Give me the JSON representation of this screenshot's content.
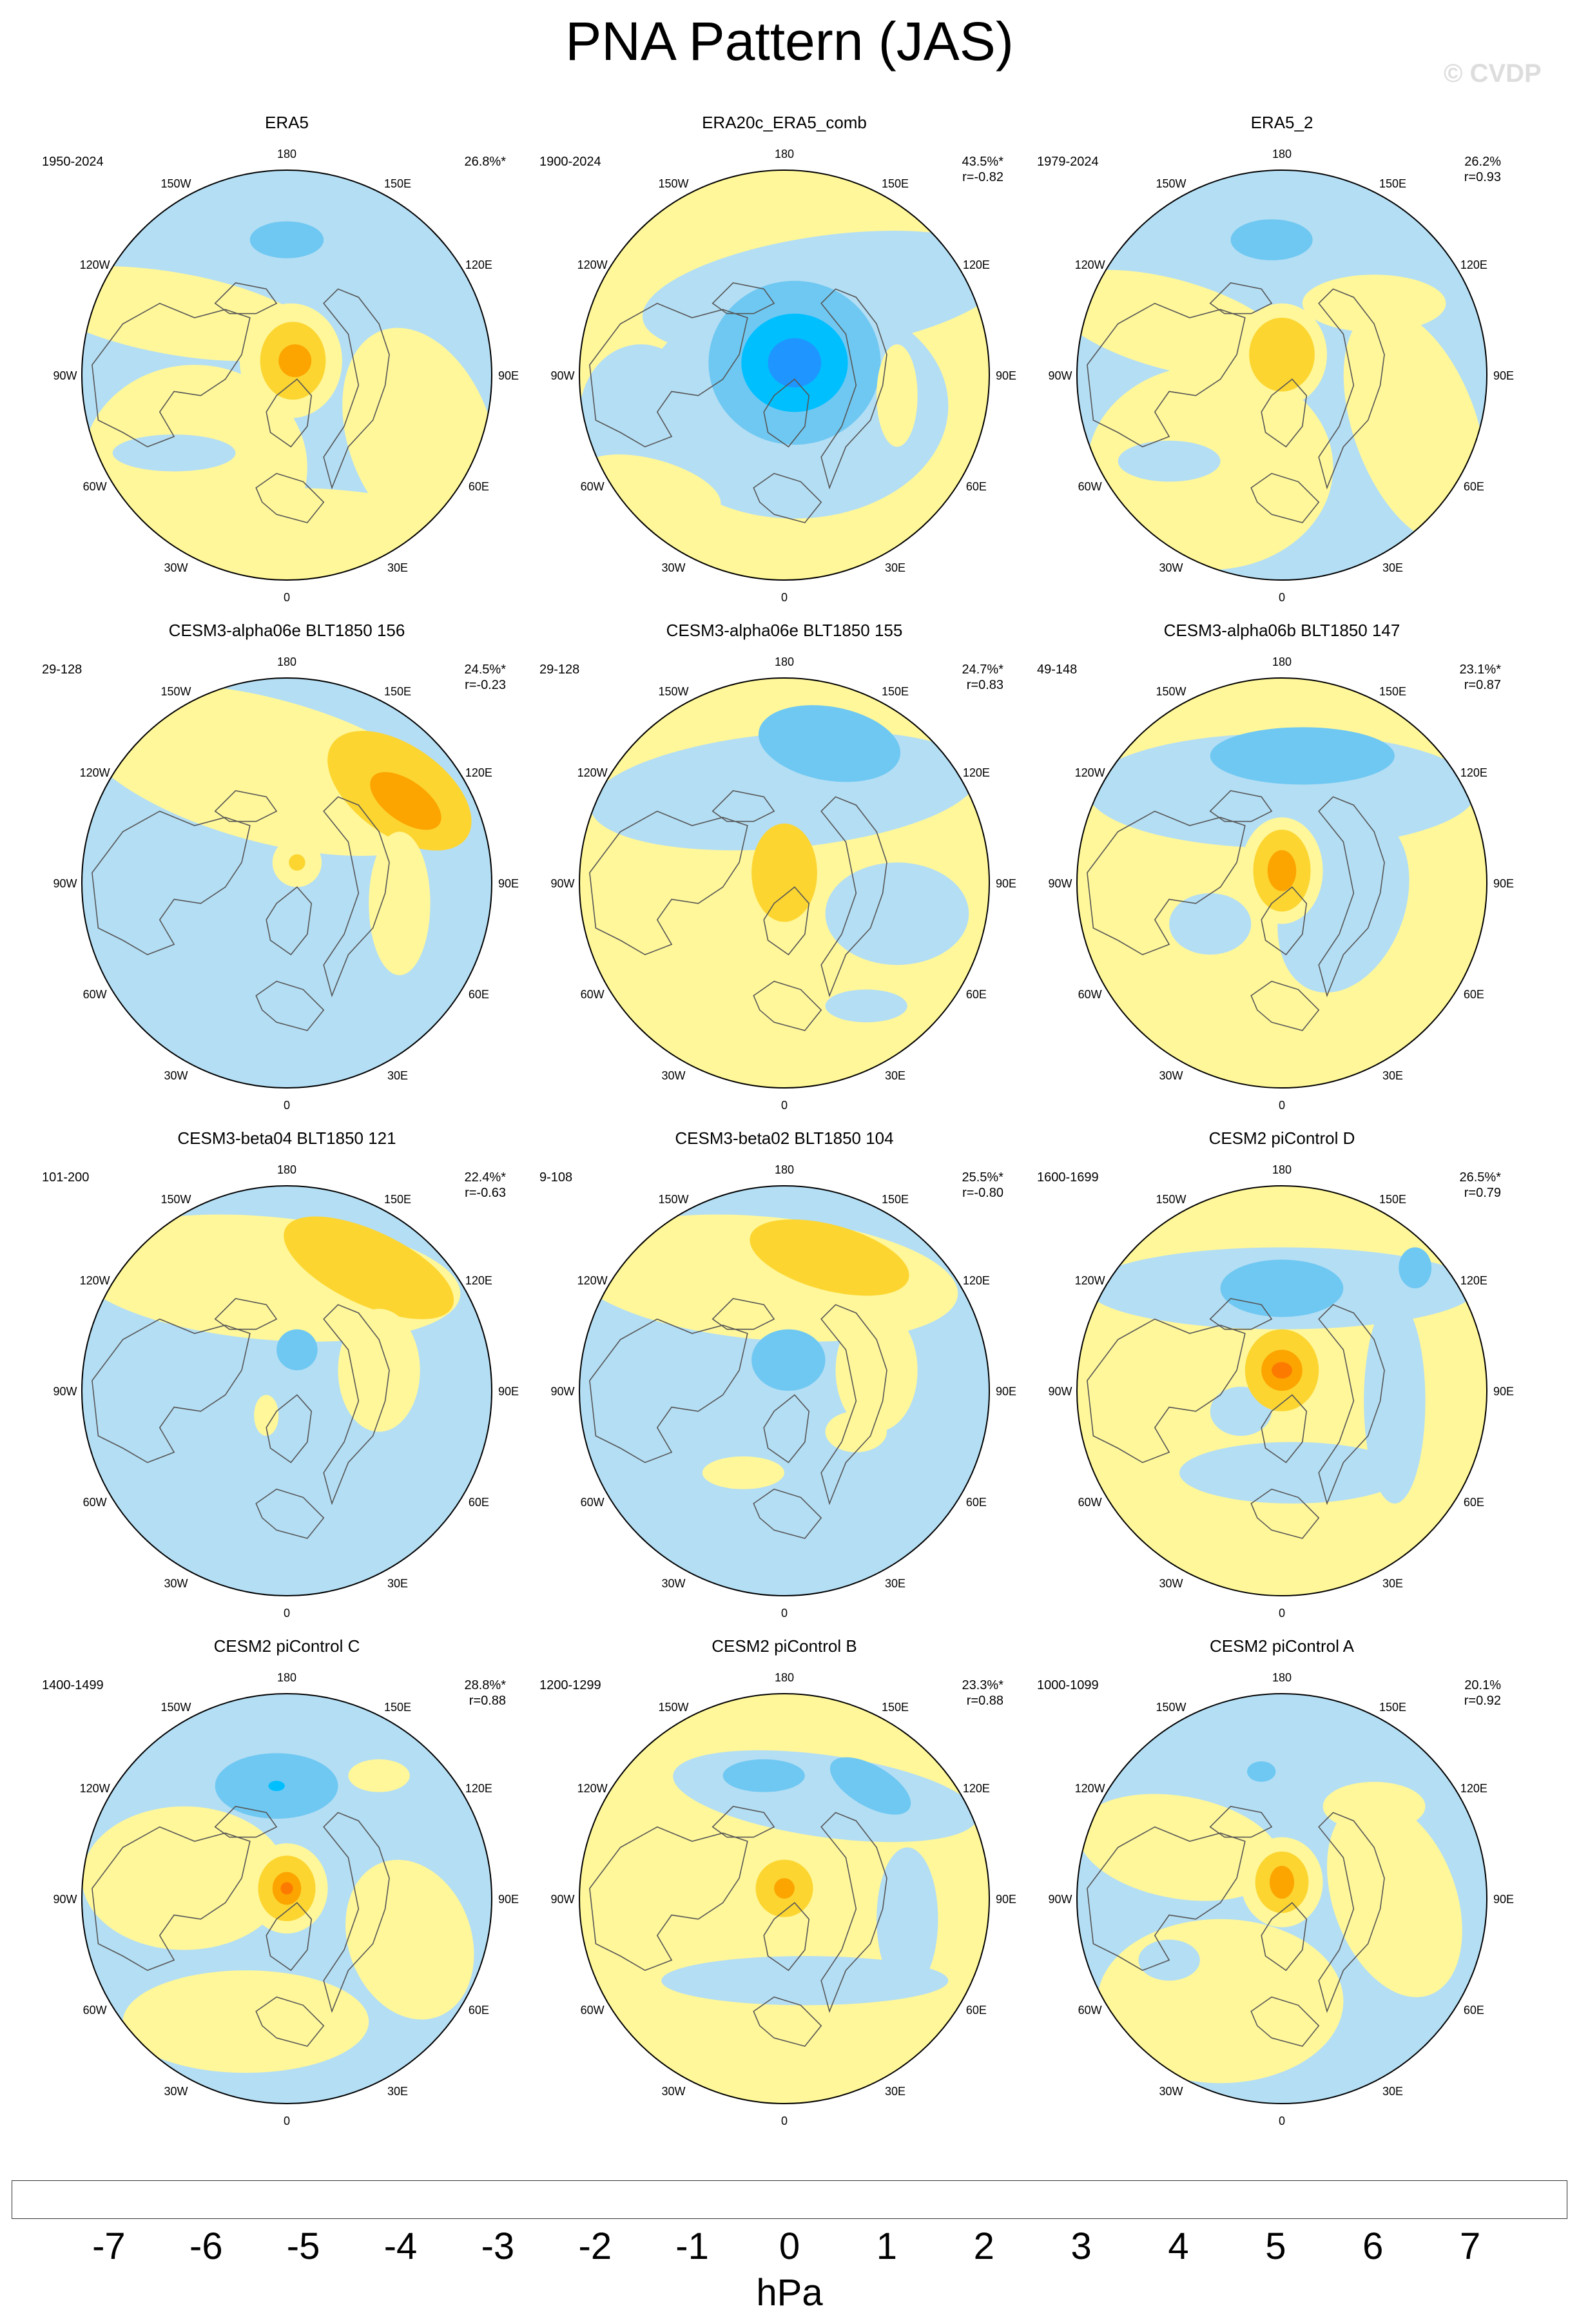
{
  "figure": {
    "title": "PNA Pattern (JAS)",
    "watermark": "© CVDP",
    "units": "hPa",
    "longitude_labels": [
      "180",
      "150E",
      "120E",
      "90E",
      "60E",
      "30E",
      "0",
      "30W",
      "60W",
      "90W",
      "120W",
      "150W"
    ]
  },
  "panels": [
    {
      "name": "ERA5",
      "period": "1950-2024",
      "variance": "26.8%*",
      "corr": "",
      "pattern": "era5"
    },
    {
      "name": "ERA20c_ERA5_comb",
      "period": "1900-2024",
      "variance": "43.5%*",
      "corr": "r=-0.82",
      "pattern": "era20c"
    },
    {
      "name": "ERA5_2",
      "period": "1979-2024",
      "variance": "26.2%",
      "corr": "r=0.93",
      "pattern": "era5_2"
    },
    {
      "name": "CESM3-alpha06e BLT1850 156",
      "period": "29-128",
      "variance": "24.5%*",
      "corr": "r=-0.23",
      "pattern": "a156"
    },
    {
      "name": "CESM3-alpha06e BLT1850 155",
      "period": "29-128",
      "variance": "24.7%*",
      "corr": "r=0.83",
      "pattern": "a155"
    },
    {
      "name": "CESM3-alpha06b BLT1850 147",
      "period": "49-148",
      "variance": "23.1%*",
      "corr": "r=0.87",
      "pattern": "a147"
    },
    {
      "name": "CESM3-beta04 BLT1850 121",
      "period": "101-200",
      "variance": "22.4%*",
      "corr": "r=-0.63",
      "pattern": "b121"
    },
    {
      "name": "CESM3-beta02 BLT1850 104",
      "period": "9-108",
      "variance": "25.5%*",
      "corr": "r=-0.80",
      "pattern": "b104"
    },
    {
      "name": "CESM2 piControl D",
      "period": "1600-1699",
      "variance": "26.5%*",
      "corr": "r=0.79",
      "pattern": "pcD"
    },
    {
      "name": "CESM2 piControl C",
      "period": "1400-1499",
      "variance": "28.8%*",
      "corr": "r=0.88",
      "pattern": "pcC"
    },
    {
      "name": "CESM2 piControl B",
      "period": "1200-1299",
      "variance": "23.3%*",
      "corr": "r=0.88",
      "pattern": "pcB"
    },
    {
      "name": "CESM2 piControl A",
      "period": "1000-1099",
      "variance": "20.1%",
      "corr": "r=0.92",
      "pattern": "pcA"
    }
  ],
  "colorbar": {
    "labels": [
      "-7",
      "-6",
      "-5",
      "-4",
      "-3",
      "-2",
      "-1",
      "0",
      "1",
      "2",
      "3",
      "4",
      "5",
      "6",
      "7"
    ],
    "colors": [
      "#8b24e8",
      "#1a00ff",
      "#2f43e6",
      "#3a78e8",
      "#1f96ff",
      "#00bfff",
      "#6fc8f2",
      "#b4def4",
      "#fff79a",
      "#fcd531",
      "#fca400",
      "#fc7a00",
      "#fc2a00",
      "#e80000",
      "#c81c1c",
      "#ffb3b3"
    ]
  },
  "colors": {
    "neg1": "#b4def4",
    "neg2": "#6fc8f2",
    "neg3": "#00bfff",
    "neg4": "#1f96ff",
    "pos1": "#fff79a",
    "pos2": "#fcd531",
    "pos3": "#fca400",
    "pos4": "#fc7a00",
    "coast": "#555555"
  }
}
